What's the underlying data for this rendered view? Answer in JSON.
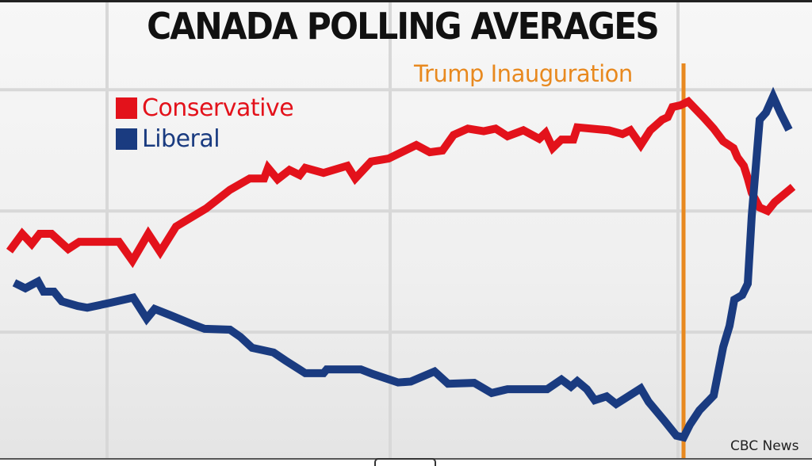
{
  "chart_data": {
    "type": "line",
    "title": "CANADA POLLING AVERAGES",
    "xlabel": "",
    "ylabel": "",
    "x_units": "relative time index (no tick labels shown)",
    "y_units": "relative poll level (no tick labels shown)",
    "xlim": [
      0,
      1024
    ],
    "ylim": [
      0,
      100
    ],
    "grid": true,
    "grid_x": [
      135,
      492,
      855
    ],
    "grid_y": [
      29.8,
      58.5,
      87.2
    ],
    "legend_position": "top-left",
    "annotations": [
      {
        "label": "Trump Inauguration",
        "x": 862,
        "color": "#e8891f"
      }
    ],
    "source": "CBC News",
    "series": [
      {
        "name": "Conservative",
        "color": "#e3121b",
        "points": [
          [
            12,
            49.0
          ],
          [
            28,
            53.1
          ],
          [
            40,
            50.7
          ],
          [
            50,
            53.1
          ],
          [
            65,
            53.1
          ],
          [
            86,
            49.5
          ],
          [
            100,
            51.2
          ],
          [
            120,
            51.2
          ],
          [
            150,
            51.2
          ],
          [
            167,
            46.7
          ],
          [
            187,
            53.1
          ],
          [
            202,
            48.8
          ],
          [
            222,
            54.8
          ],
          [
            260,
            59.1
          ],
          [
            290,
            63.5
          ],
          [
            315,
            66.2
          ],
          [
            333,
            66.2
          ],
          [
            338,
            68.7
          ],
          [
            350,
            66.0
          ],
          [
            365,
            68.2
          ],
          [
            378,
            67.0
          ],
          [
            385,
            68.7
          ],
          [
            408,
            67.5
          ],
          [
            438,
            69.2
          ],
          [
            448,
            66.2
          ],
          [
            468,
            70.2
          ],
          [
            490,
            70.9
          ],
          [
            525,
            74.1
          ],
          [
            542,
            72.4
          ],
          [
            558,
            72.8
          ],
          [
            572,
            76.5
          ],
          [
            590,
            78.0
          ],
          [
            610,
            77.4
          ],
          [
            625,
            78.0
          ],
          [
            640,
            76.2
          ],
          [
            660,
            77.6
          ],
          [
            680,
            75.6
          ],
          [
            688,
            77.0
          ],
          [
            697,
            73.4
          ],
          [
            708,
            75.4
          ],
          [
            723,
            75.4
          ],
          [
            728,
            78.3
          ],
          [
            768,
            77.6
          ],
          [
            785,
            76.7
          ],
          [
            795,
            77.6
          ],
          [
            808,
            74.1
          ],
          [
            820,
            77.6
          ],
          [
            835,
            80.1
          ],
          [
            842,
            80.7
          ],
          [
            848,
            83.1
          ],
          [
            858,
            83.5
          ],
          [
            868,
            84.4
          ],
          [
            888,
            80.5
          ],
          [
            900,
            78.0
          ],
          [
            912,
            75.0
          ],
          [
            925,
            73.4
          ],
          [
            930,
            71.2
          ],
          [
            938,
            69.2
          ],
          [
            943,
            66.2
          ],
          [
            948,
            62.8
          ],
          [
            958,
            59.3
          ],
          [
            968,
            58.5
          ],
          [
            977,
            60.6
          ],
          [
            1000,
            64.2
          ]
        ]
      },
      {
        "name": "Liberal",
        "color": "#1a3b80",
        "points": [
          [
            18,
            41.5
          ],
          [
            32,
            40.2
          ],
          [
            48,
            41.8
          ],
          [
            55,
            39.4
          ],
          [
            68,
            39.4
          ],
          [
            78,
            37.1
          ],
          [
            98,
            36.0
          ],
          [
            110,
            35.6
          ],
          [
            140,
            36.8
          ],
          [
            168,
            38.0
          ],
          [
            185,
            33.0
          ],
          [
            195,
            35.3
          ],
          [
            215,
            33.8
          ],
          [
            245,
            31.5
          ],
          [
            258,
            30.6
          ],
          [
            290,
            30.4
          ],
          [
            303,
            28.7
          ],
          [
            318,
            26.1
          ],
          [
            345,
            25.0
          ],
          [
            360,
            23.1
          ],
          [
            385,
            20.1
          ],
          [
            408,
            20.1
          ],
          [
            412,
            21.0
          ],
          [
            455,
            21.0
          ],
          [
            470,
            19.9
          ],
          [
            502,
            17.9
          ],
          [
            518,
            18.1
          ],
          [
            548,
            20.5
          ],
          [
            565,
            17.6
          ],
          [
            598,
            17.8
          ],
          [
            620,
            15.4
          ],
          [
            640,
            16.3
          ],
          [
            690,
            16.3
          ],
          [
            708,
            18.6
          ],
          [
            720,
            16.9
          ],
          [
            728,
            18.2
          ],
          [
            740,
            16.3
          ],
          [
            750,
            13.7
          ],
          [
            765,
            14.6
          ],
          [
            777,
            12.8
          ],
          [
            808,
            16.5
          ],
          [
            818,
            13.3
          ],
          [
            838,
            8.8
          ],
          [
            853,
            5.3
          ],
          [
            862,
            4.9
          ],
          [
            870,
            7.9
          ],
          [
            882,
            11.3
          ],
          [
            900,
            14.8
          ],
          [
            912,
            26.3
          ],
          [
            920,
            31.3
          ],
          [
            926,
            37.5
          ],
          [
            936,
            38.6
          ],
          [
            943,
            41.3
          ],
          [
            948,
            57.3
          ],
          [
            958,
            80.1
          ],
          [
            966,
            81.8
          ],
          [
            975,
            85.6
          ],
          [
            984,
            81.8
          ],
          [
            995,
            77.7
          ]
        ]
      }
    ]
  },
  "legend": {
    "items": [
      {
        "label": "Conservative",
        "color": "#e3121b"
      },
      {
        "label": "Liberal",
        "color": "#1a3b80"
      }
    ]
  },
  "colors": {
    "conservative": "#e3121b",
    "liberal": "#1a3b80",
    "annotation": "#e8891f",
    "gridline": "#d8d8d8"
  }
}
